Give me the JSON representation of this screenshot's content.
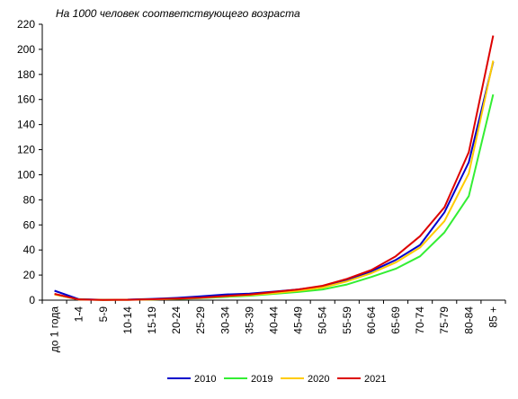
{
  "chart_data": {
    "type": "line",
    "title": "",
    "subtitle": "На 1000 человек соответствующего возраста",
    "xlabel": "",
    "ylabel": "",
    "categories": [
      "до 1 года",
      "1-4",
      "5-9",
      "10-14",
      "15-19",
      "20-24",
      "25-29",
      "30-34",
      "35-39",
      "40-44",
      "45-49",
      "50-54",
      "55-59",
      "60-64",
      "65-69",
      "70-74",
      "75-79",
      "80-84",
      "85 +"
    ],
    "ylim": [
      0,
      220
    ],
    "yticks": [
      0,
      20,
      40,
      60,
      80,
      100,
      120,
      140,
      160,
      180,
      200,
      220
    ],
    "grid": false,
    "legend_position": "bottom",
    "series": [
      {
        "name": "2010",
        "color": "#0000cc",
        "values": [
          7.5,
          0.8,
          0.3,
          0.4,
          1.0,
          1.8,
          3.0,
          4.5,
          5.2,
          6.8,
          8.5,
          11.0,
          16.0,
          23.0,
          32.0,
          44.0,
          70.0,
          110.0,
          190.0
        ]
      },
      {
        "name": "2019",
        "color": "#33ee33",
        "values": [
          4.5,
          0.5,
          0.2,
          0.3,
          0.6,
          1.0,
          1.6,
          2.5,
          3.5,
          5.0,
          6.5,
          8.5,
          12.5,
          18.5,
          25.0,
          35.0,
          54.0,
          83.0,
          164.0
        ]
      },
      {
        "name": "2020",
        "color": "#ffcc00",
        "values": [
          4.5,
          0.5,
          0.2,
          0.3,
          0.6,
          1.1,
          1.8,
          3.0,
          4.0,
          5.5,
          7.5,
          10.0,
          15.0,
          21.5,
          30.0,
          42.0,
          63.0,
          101.0,
          191.0
        ]
      },
      {
        "name": "2021",
        "color": "#dd0000",
        "values": [
          5.0,
          0.5,
          0.2,
          0.3,
          0.7,
          1.2,
          2.0,
          3.3,
          4.5,
          6.5,
          8.5,
          11.5,
          17.0,
          24.0,
          35.0,
          51.0,
          74.0,
          118.0,
          211.0
        ]
      }
    ]
  }
}
